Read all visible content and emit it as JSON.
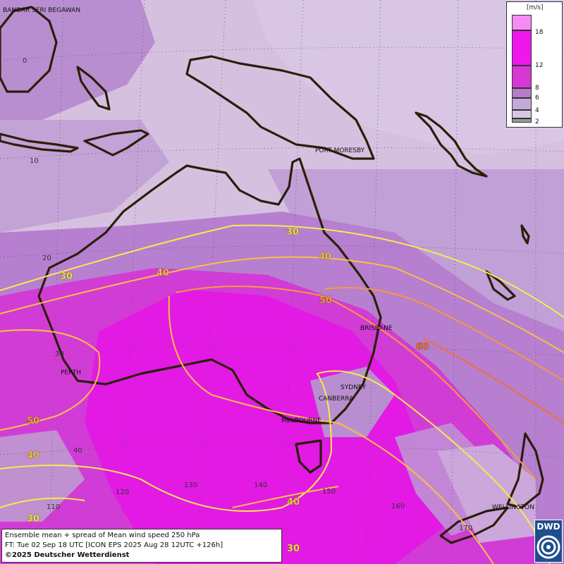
{
  "title": "Ensemble mean + spread of Mean wind speed 250 hPa",
  "forecast_time": "FT: Tue 02 Sep 18 UTC [ICON EPS 2025 Aug 28 12UTC +126h]",
  "copyright": "©2025 Deutscher Wetterdienst",
  "logo_text": "DWD",
  "legend": {
    "unit": "[m/s]",
    "levels": [
      {
        "label": "18",
        "color": "#f58cf3"
      },
      {
        "label": "12",
        "color": "#ee18ee"
      },
      {
        "label": "8",
        "color": "#d638d6"
      },
      {
        "label": "6",
        "color": "#b47ccb"
      },
      {
        "label": "4",
        "color": "#c5a8da"
      },
      {
        "label": "2",
        "color": "#d9c6e4"
      },
      {
        "label": "",
        "color": "#999999"
      }
    ]
  },
  "cities": [
    {
      "name": "BANDAR SERI BEGAWAN"
    },
    {
      "name": "PORT MORESBY"
    },
    {
      "name": "BRISBANE"
    },
    {
      "name": "PERTH"
    },
    {
      "name": "SYDNEY"
    },
    {
      "name": "CANBERRA"
    },
    {
      "name": "MELBOURNE"
    },
    {
      "name": "WELLINGTON"
    }
  ],
  "lat_labels": [
    "0",
    "10",
    "20",
    "30",
    "40"
  ],
  "lon_labels": [
    "110",
    "120",
    "130",
    "140",
    "150",
    "160",
    "170"
  ],
  "contour_labels": [
    {
      "text": "30",
      "color": "#f0e040"
    },
    {
      "text": "30",
      "color": "#f0e040"
    },
    {
      "text": "30",
      "color": "#f0e040"
    },
    {
      "text": "30",
      "color": "#f0e040"
    },
    {
      "text": "40",
      "color": "#f0c040"
    },
    {
      "text": "40",
      "color": "#f0c040"
    },
    {
      "text": "40",
      "color": "#f0c040"
    },
    {
      "text": "40",
      "color": "#f0c040"
    },
    {
      "text": "50",
      "color": "#f0a030"
    },
    {
      "text": "50",
      "color": "#f0a030"
    },
    {
      "text": "60",
      "color": "#f07030"
    }
  ]
}
